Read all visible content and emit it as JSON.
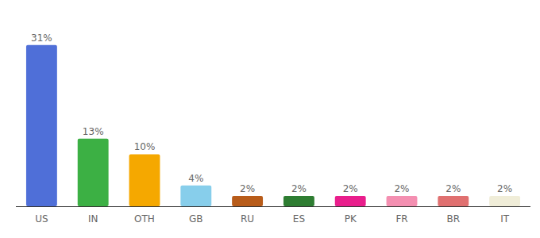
{
  "chart_data": {
    "type": "bar",
    "categories": [
      "US",
      "IN",
      "OTH",
      "GB",
      "RU",
      "ES",
      "PK",
      "FR",
      "BR",
      "IT"
    ],
    "values": [
      31,
      13,
      10,
      4,
      2,
      2,
      2,
      2,
      2,
      2
    ],
    "value_labels": [
      "31%",
      "13%",
      "10%",
      "4%",
      "2%",
      "2%",
      "2%",
      "2%",
      "2%",
      "2%"
    ],
    "colors": [
      "#4F6FD8",
      "#3CB044",
      "#F5A800",
      "#87CEEB",
      "#B85C1A",
      "#2E7D32",
      "#E91E8C",
      "#F48FB1",
      "#E07070",
      "#F0EDD8"
    ],
    "ylim": [
      0,
      36
    ],
    "data_labels": true,
    "tick_labels": "x",
    "grid": false
  }
}
